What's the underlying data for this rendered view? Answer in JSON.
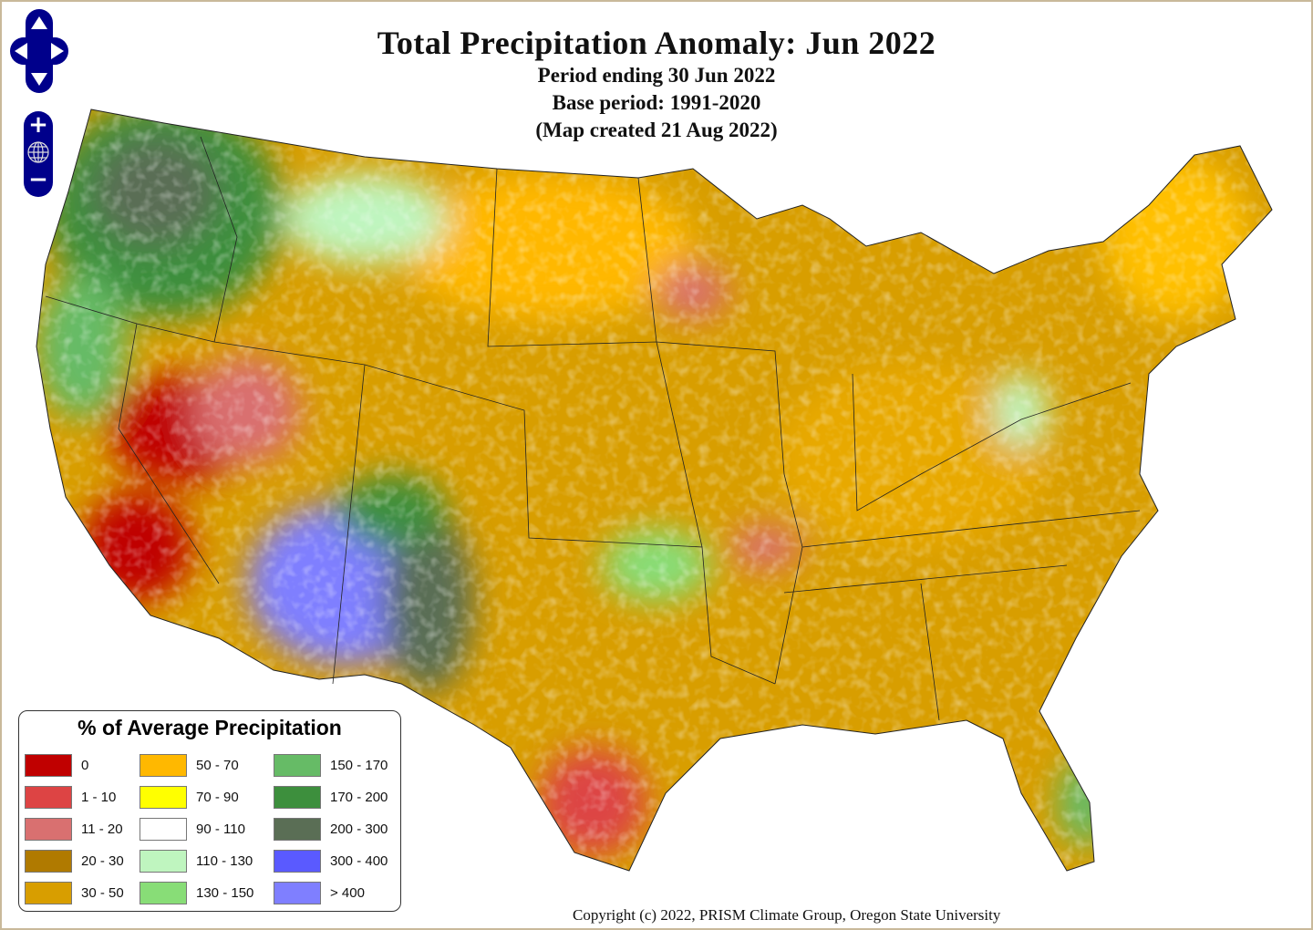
{
  "title": "Total Precipitation Anomaly: Jun 2022",
  "subtitle_lines": [
    "Period ending 30 Jun 2022",
    "Base period: 1991-2020",
    "(Map created 21 Aug 2022)"
  ],
  "legend": {
    "title": "% of Average Precipitation",
    "items": [
      {
        "label": "0",
        "color": "#c00000"
      },
      {
        "label": "50 - 70",
        "color": "#ffb800"
      },
      {
        "label": "150 - 170",
        "color": "#66bb66"
      },
      {
        "label": "1 - 10",
        "color": "#dd4444"
      },
      {
        "label": "70 - 90",
        "color": "#ffff00"
      },
      {
        "label": "170 - 200",
        "color": "#3d8f3d"
      },
      {
        "label": "11 - 20",
        "color": "#d97070"
      },
      {
        "label": "90 - 110",
        "color": "#ffffff"
      },
      {
        "label": "200 - 300",
        "color": "#5a6e55"
      },
      {
        "label": "20 - 30",
        "color": "#b07a00"
      },
      {
        "label": "110 - 130",
        "color": "#bff5bf"
      },
      {
        "label": "300 - 400",
        "color": "#5a5aff"
      },
      {
        "label": "30 - 50",
        "color": "#d89e00"
      },
      {
        "label": "130 - 150",
        "color": "#88dd77"
      },
      {
        "label": "> 400",
        "color": "#7f7fff"
      }
    ]
  },
  "controls": {
    "zoom_in": "+",
    "zoom_out": "−"
  },
  "copyright": "Copyright (c) 2022, PRISM Climate Group, Oregon State University"
}
